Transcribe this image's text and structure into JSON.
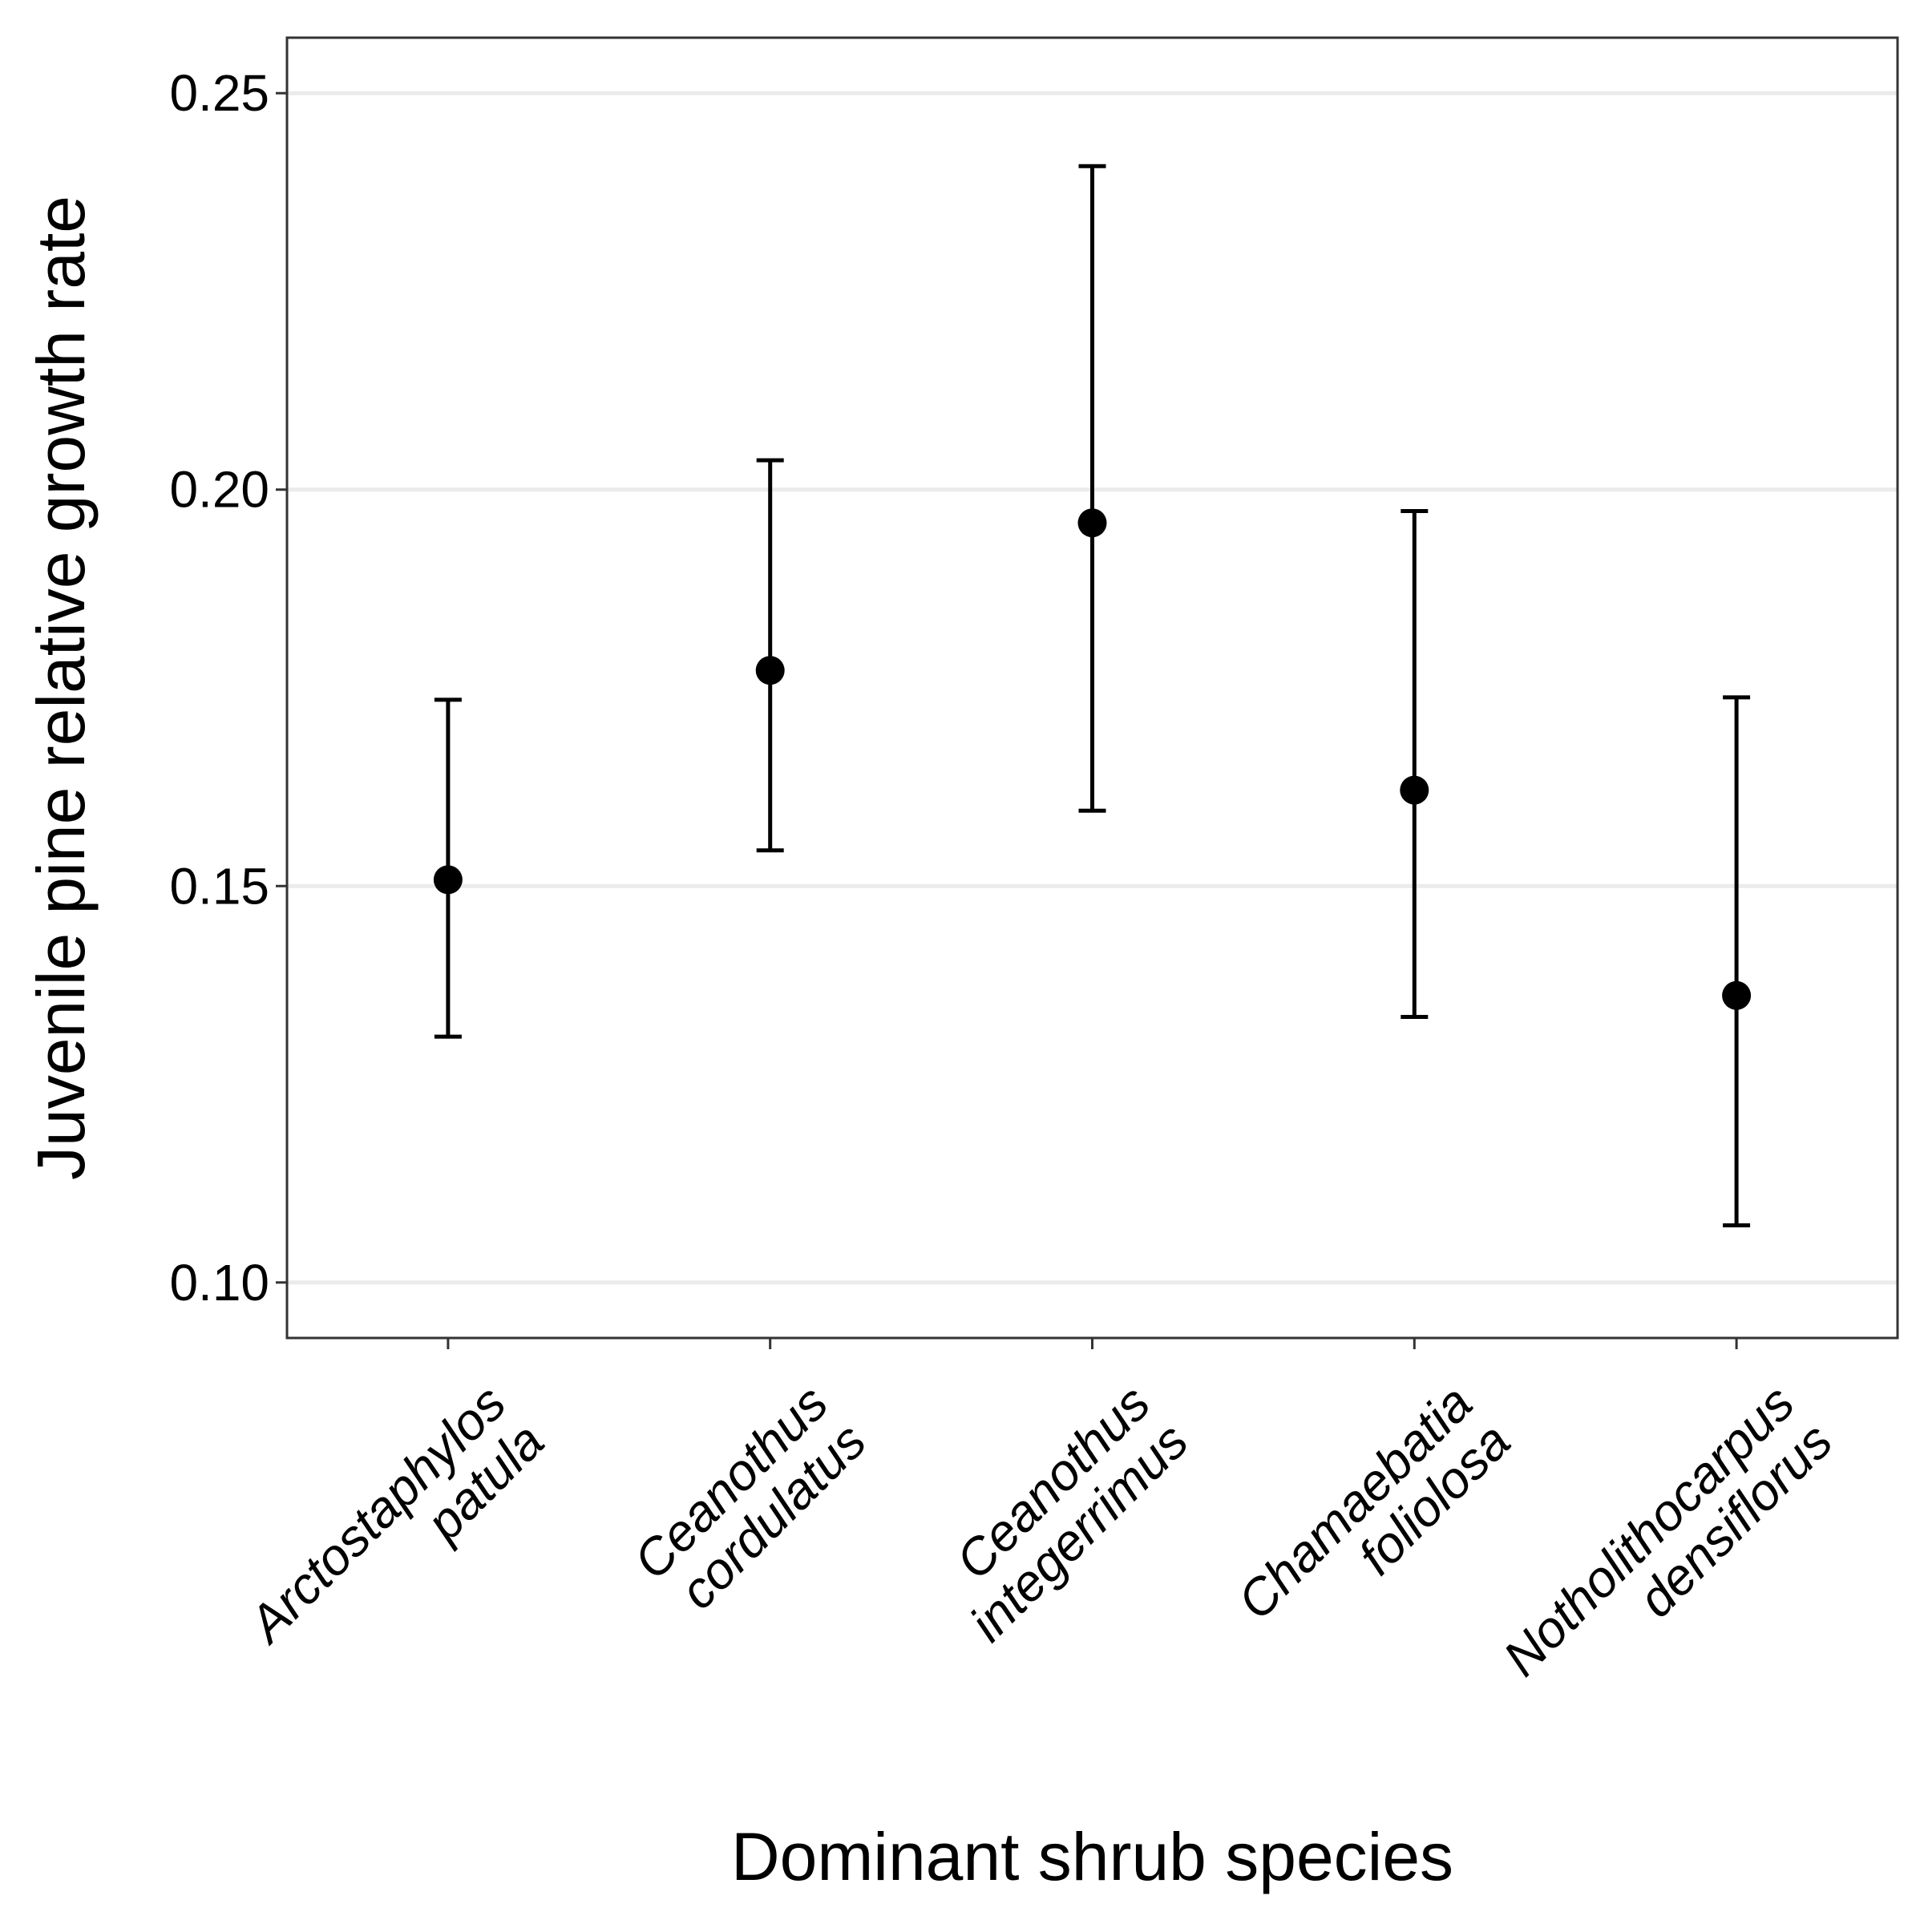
{
  "chart_data": {
    "type": "scatter",
    "title": "",
    "xlabel": "Dominant shrub species",
    "ylabel": "Juvenile pine relative growth rate",
    "ylim": [
      0.093,
      0.257
    ],
    "yticks": [
      "0.10",
      "0.15",
      "0.20",
      "0.25"
    ],
    "grid": "horizontal major",
    "legend": "none",
    "categories": [
      [
        "Arctostaphylos",
        "patula"
      ],
      [
        "Ceanothus",
        "cordulatus"
      ],
      [
        "Ceanothus",
        "integerrimus"
      ],
      [
        "Chamaebatia",
        "foliolosa"
      ],
      [
        "Notholithocarpus",
        "densiflorus"
      ]
    ],
    "series": [
      {
        "points": [
          {
            "mean": 0.1508,
            "lower": 0.131,
            "upper": 0.1735
          },
          {
            "mean": 0.1772,
            "lower": 0.1545,
            "upper": 0.2037
          },
          {
            "mean": 0.1958,
            "lower": 0.1595,
            "upper": 0.2408
          },
          {
            "mean": 0.1621,
            "lower": 0.1335,
            "upper": 0.1973
          },
          {
            "mean": 0.1362,
            "lower": 0.1072,
            "upper": 0.1738
          }
        ]
      }
    ],
    "colors": {
      "point": "#000000",
      "errorbar": "#000000",
      "grid": "#ebebeb",
      "panel_border": "#333333"
    }
  }
}
